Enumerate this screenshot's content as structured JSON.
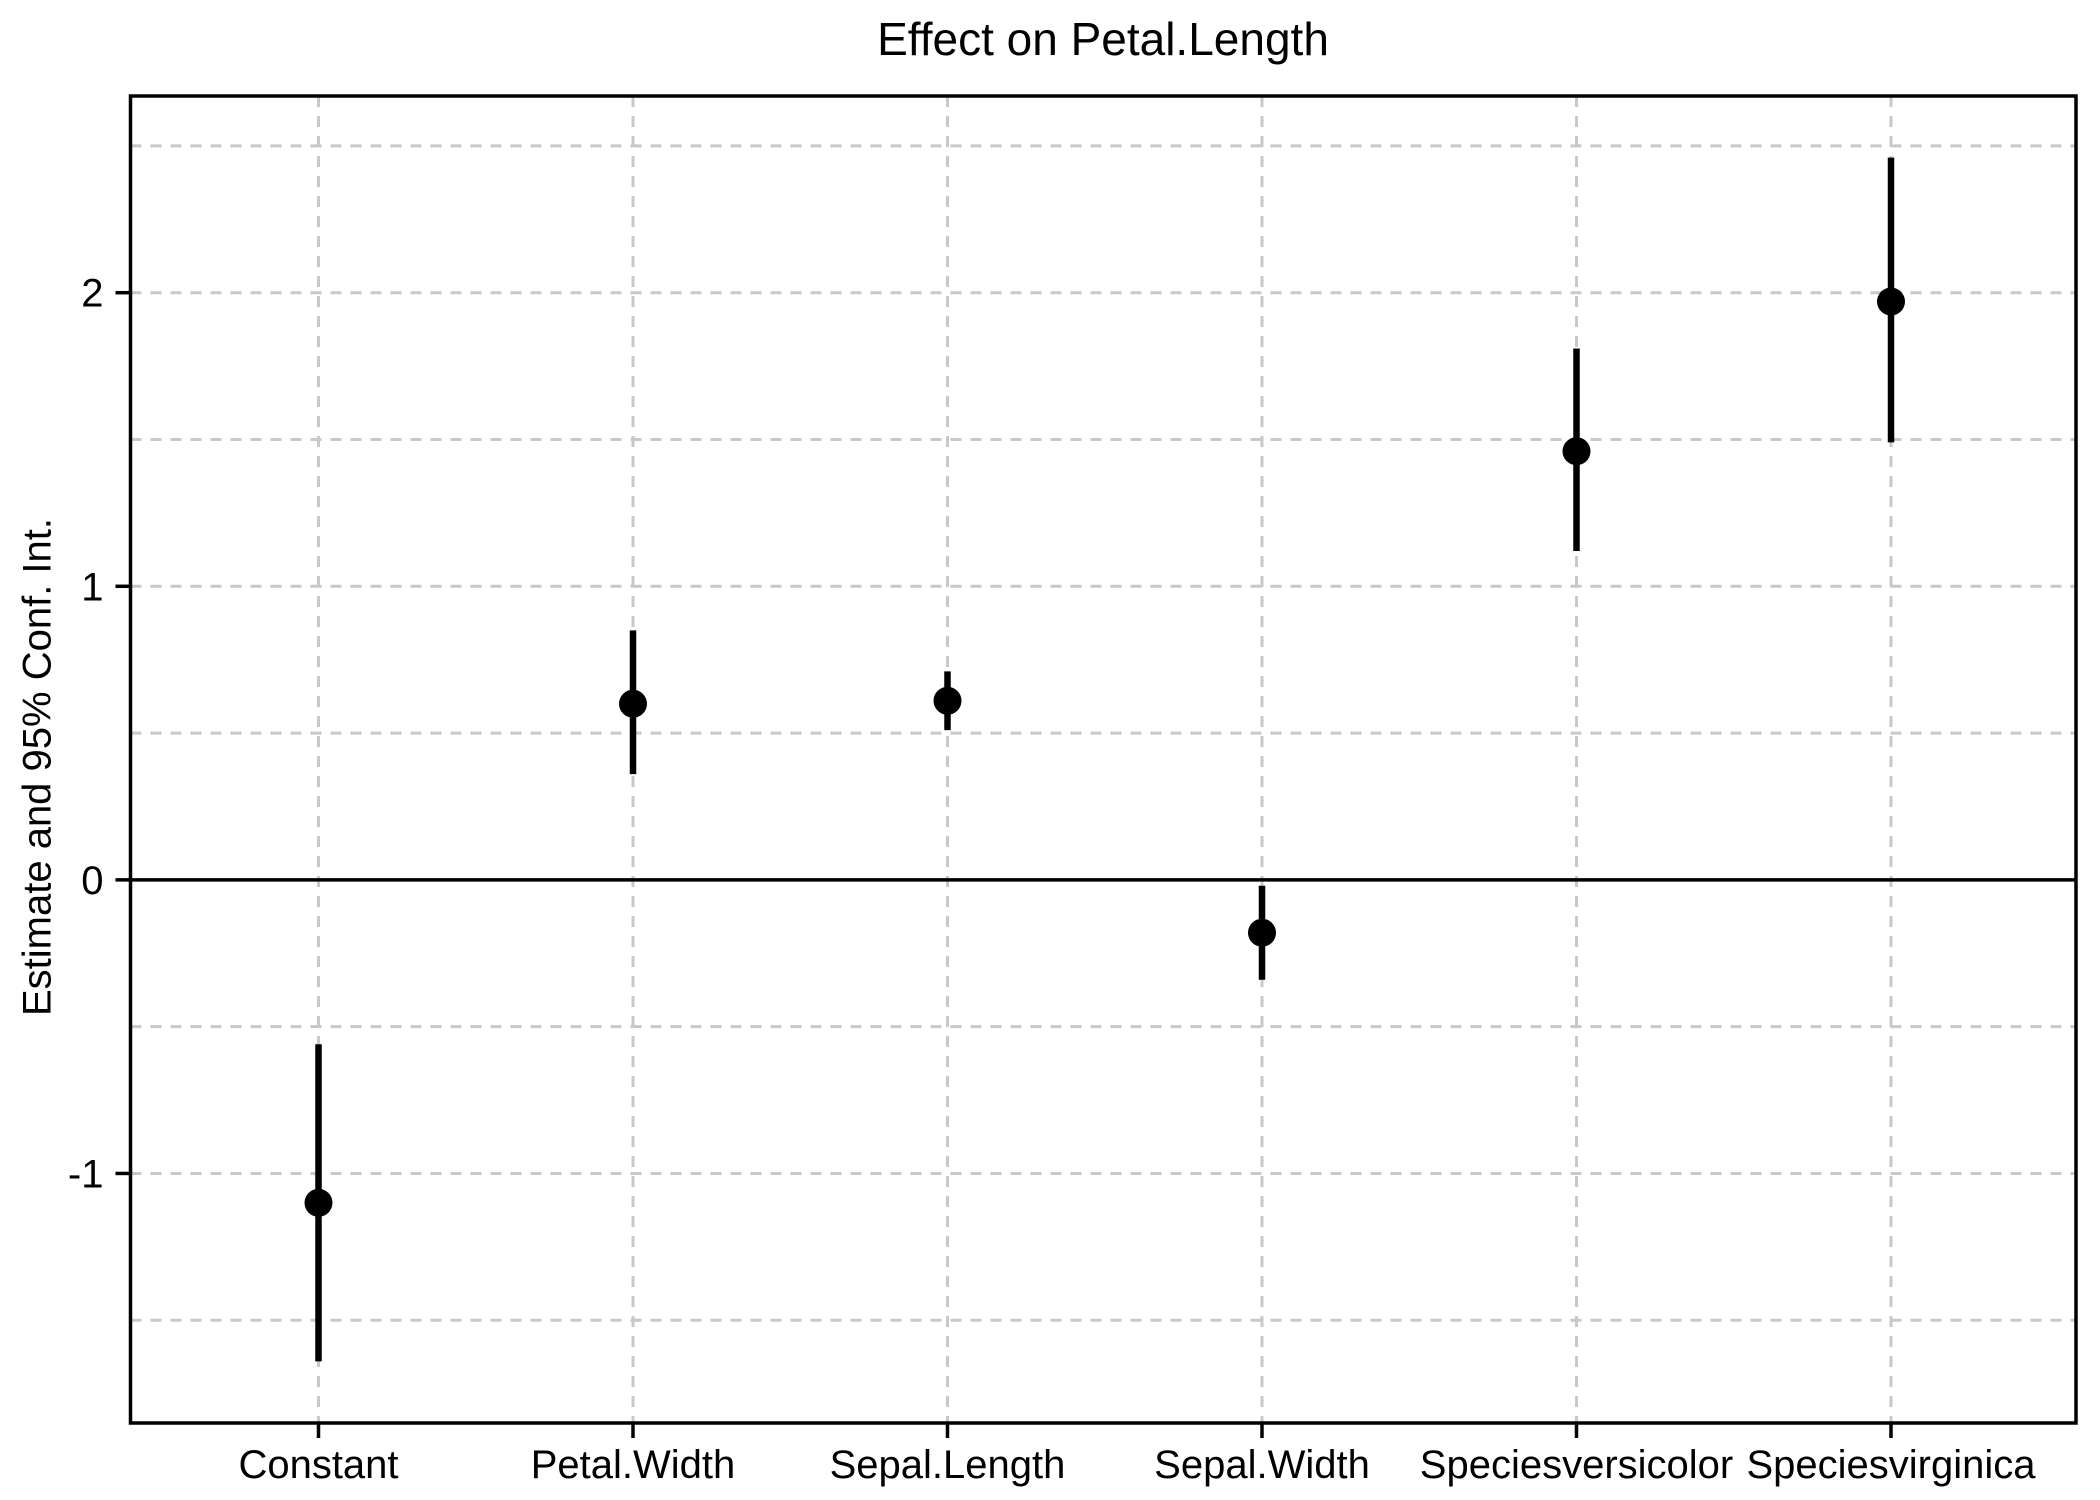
{
  "title": "Effect on Petal.Length",
  "chart_data": {
    "type": "scatter",
    "subtype": "coefficient-plot-with-error-bars",
    "title": "Effect on Petal.Length",
    "xlabel": "",
    "ylabel": "Estimate and 95% Conf. Int.",
    "categories": [
      "Constant",
      "Petal.Width",
      "Sepal.Length",
      "Sepal.Width",
      "Speciesversicolor",
      "Speciesvirginica"
    ],
    "series": [
      {
        "name": "Estimate",
        "values": [
          -1.1,
          0.6,
          0.61,
          -0.18,
          1.46,
          1.97
        ]
      },
      {
        "name": "CI lower 95%",
        "values": [
          -1.64,
          0.36,
          0.51,
          -0.34,
          1.12,
          1.49
        ]
      },
      {
        "name": "CI upper 95%",
        "values": [
          -0.56,
          0.85,
          0.71,
          -0.02,
          1.81,
          2.46
        ]
      }
    ],
    "y_ticks": [
      -1,
      0,
      1,
      2
    ],
    "y_tick_labels": [
      "-1",
      "0",
      "1",
      "2"
    ],
    "y_gridlines": [
      -1.5,
      -1,
      -0.5,
      0.5,
      1,
      1.5,
      2,
      2.5
    ],
    "ylim": [
      -1.85,
      2.67
    ],
    "reference_line": 0,
    "grid": "dashed",
    "legend": "none",
    "colors": {
      "point": "#000000",
      "errorbar": "#000000",
      "grid": "#C8C8C8",
      "reference_line": "#000000",
      "panel_border": "#000000",
      "background": "#FFFFFF",
      "text": "#000000"
    }
  }
}
